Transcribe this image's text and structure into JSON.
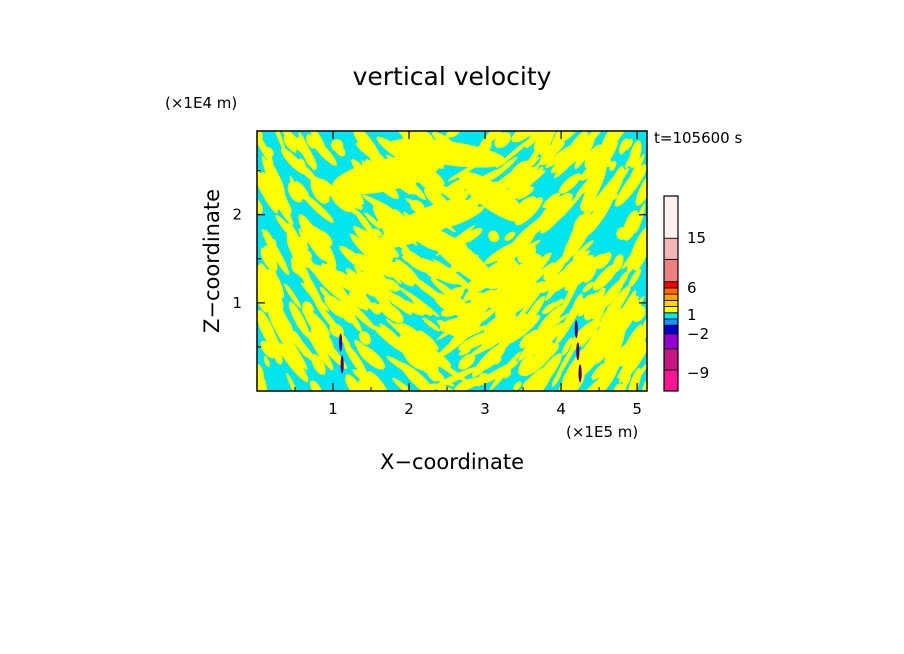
{
  "chart_data": {
    "type": "heatmap",
    "title": "vertical velocity",
    "xlabel": "X−coordinate",
    "ylabel": "Z−coordinate",
    "x_unit": "(×1E5 m)",
    "y_unit": "(×1E4 m)",
    "time_label": "t=105600 s",
    "xlim": [
      0,
      5.13
    ],
    "ylim": [
      0,
      2.95
    ],
    "x_ticks": [
      1,
      2,
      3,
      4,
      5
    ],
    "y_ticks": [
      1,
      2
    ],
    "x_ticklabels": [
      "1",
      "2",
      "3",
      "4",
      "5"
    ],
    "y_ticklabels": [
      "1",
      "2"
    ],
    "colorbar": {
      "labels": [
        {
          "text": "15",
          "level": 15
        },
        {
          "text": "6",
          "level": 6
        },
        {
          "text": "1",
          "level": 1
        },
        {
          "text": "−2",
          "level": -2
        },
        {
          "text": "−9",
          "level": -9
        }
      ],
      "bands": [
        {
          "color": "#ff1493"
        },
        {
          "color": "#c71585"
        },
        {
          "color": "#9400d3"
        },
        {
          "color": "#0000cd"
        },
        {
          "color": "#1e90ff"
        },
        {
          "color": "#00e5ee"
        },
        {
          "color": "#ffff00"
        },
        {
          "color": "#ffd700"
        },
        {
          "color": "#ffa500"
        },
        {
          "color": "#ff6a00"
        },
        {
          "color": "#ff0000"
        },
        {
          "color": "#f08080"
        },
        {
          "color": "#f5b5b5"
        },
        {
          "color": "#fff0f0"
        }
      ]
    },
    "colors": {
      "positive": "#ffff00",
      "negative": "#00e5ee",
      "strong_negative": "#4b0082"
    }
  }
}
